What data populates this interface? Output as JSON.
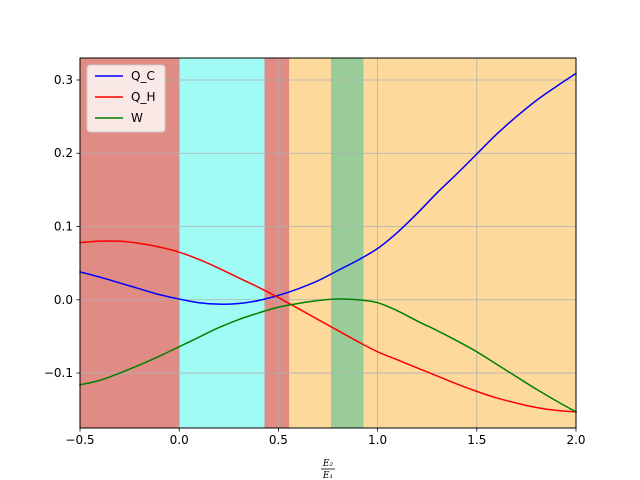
{
  "chart_data": {
    "type": "line",
    "title": "",
    "xlabel": {
      "numerator": "E₂",
      "denominator": "E₁"
    },
    "ylabel": "",
    "xlim": [
      -0.5,
      2.0
    ],
    "ylim": [
      -0.175,
      0.33
    ],
    "grid": true,
    "legend_position": "top-left",
    "x_ticks": [
      -0.5,
      0.0,
      0.5,
      1.0,
      1.5,
      2.0
    ],
    "x_tick_labels": [
      "−0.5",
      "0.0",
      "0.5",
      "1.0",
      "1.5",
      "2.0"
    ],
    "y_ticks": [
      -0.1,
      0.0,
      0.1,
      0.2,
      0.3
    ],
    "y_tick_labels": [
      "−0.1",
      "0.0",
      "0.1",
      "0.2",
      "0.3"
    ],
    "regions": [
      {
        "x0": -0.5,
        "x1": 0.0,
        "color": "#e08b84"
      },
      {
        "x0": 0.0,
        "x1": 0.43,
        "color": "#9ffbf4"
      },
      {
        "x0": 0.43,
        "x1": 0.555,
        "color": "#e08b84"
      },
      {
        "x0": 0.555,
        "x1": 0.765,
        "color": "#fdda9c"
      },
      {
        "x0": 0.765,
        "x1": 0.93,
        "color": "#99cc99"
      },
      {
        "x0": 0.93,
        "x1": 2.0,
        "color": "#fdda9c"
      }
    ],
    "series": [
      {
        "name": "Q_C",
        "color": "#0000ff",
        "x": [
          -0.5,
          -0.4,
          -0.3,
          -0.2,
          -0.1,
          0.0,
          0.1,
          0.2,
          0.3,
          0.4,
          0.5,
          0.6,
          0.7,
          0.8,
          0.9,
          1.0,
          1.1,
          1.2,
          1.3,
          1.4,
          1.5,
          1.6,
          1.7,
          1.8,
          1.9,
          2.0
        ],
        "y": [
          0.038,
          0.031,
          0.023,
          0.015,
          0.007,
          0.001,
          -0.004,
          -0.006,
          -0.005,
          -0.001,
          0.006,
          0.015,
          0.026,
          0.04,
          0.054,
          0.07,
          0.092,
          0.118,
          0.146,
          0.172,
          0.199,
          0.226,
          0.25,
          0.272,
          0.291,
          0.309
        ]
      },
      {
        "name": "Q_H",
        "color": "#ff0000",
        "x": [
          -0.5,
          -0.4,
          -0.3,
          -0.2,
          -0.1,
          0.0,
          0.1,
          0.2,
          0.3,
          0.4,
          0.5,
          0.6,
          0.7,
          0.8,
          0.9,
          1.0,
          1.1,
          1.2,
          1.3,
          1.4,
          1.5,
          1.6,
          1.7,
          1.8,
          1.9,
          2.0
        ],
        "y": [
          0.078,
          0.08,
          0.08,
          0.077,
          0.072,
          0.065,
          0.055,
          0.043,
          0.03,
          0.017,
          0.003,
          -0.012,
          -0.027,
          -0.042,
          -0.057,
          -0.071,
          -0.082,
          -0.093,
          -0.104,
          -0.115,
          -0.125,
          -0.134,
          -0.141,
          -0.147,
          -0.151,
          -0.153
        ]
      },
      {
        "name": "W",
        "color": "#008000",
        "x": [
          -0.5,
          -0.4,
          -0.3,
          -0.2,
          -0.1,
          0.0,
          0.1,
          0.2,
          0.3,
          0.4,
          0.5,
          0.6,
          0.7,
          0.8,
          0.9,
          1.0,
          1.1,
          1.2,
          1.3,
          1.4,
          1.5,
          1.6,
          1.7,
          1.8,
          1.9,
          2.0
        ],
        "y": [
          -0.116,
          -0.11,
          -0.1,
          -0.089,
          -0.077,
          -0.064,
          -0.051,
          -0.038,
          -0.027,
          -0.018,
          -0.01,
          -0.005,
          -0.001,
          0.001,
          0.0,
          -0.004,
          -0.015,
          -0.029,
          -0.042,
          -0.056,
          -0.071,
          -0.088,
          -0.105,
          -0.122,
          -0.138,
          -0.153
        ]
      }
    ]
  }
}
